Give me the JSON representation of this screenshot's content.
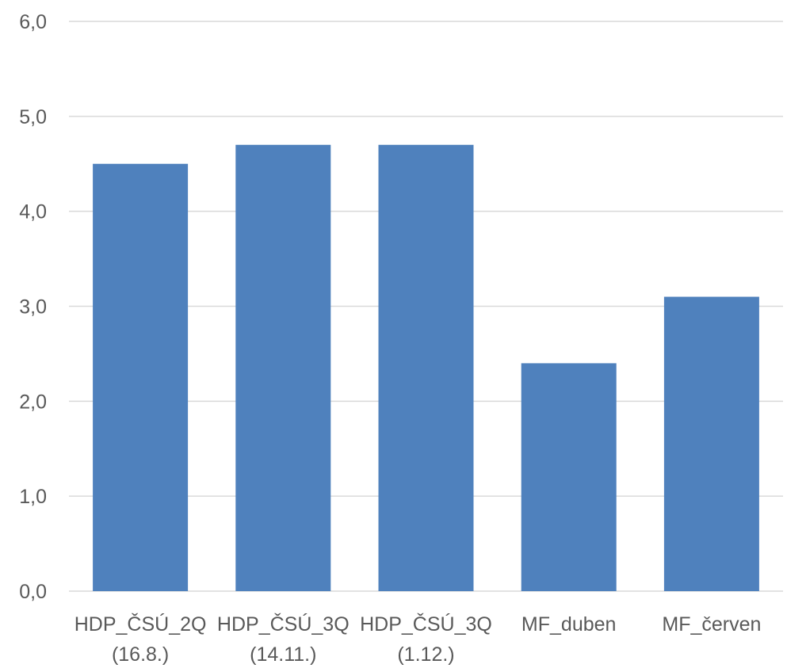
{
  "chart_data": {
    "type": "bar",
    "title": "",
    "xlabel": "",
    "ylabel": "",
    "categories": [
      [
        "HDP_ČSÚ_2Q",
        "(16.8.)"
      ],
      [
        "HDP_ČSÚ_3Q",
        "(14.11.)"
      ],
      [
        "HDP_ČSÚ_3Q",
        "(1.12.)"
      ],
      [
        "MF_duben"
      ],
      [
        "MF_červen"
      ]
    ],
    "values": [
      4.5,
      4.7,
      4.7,
      2.4,
      3.1
    ],
    "ylim": [
      0,
      6
    ],
    "yticks": [
      "0,0",
      "1,0",
      "2,0",
      "3,0",
      "4,0",
      "5,0",
      "6,0"
    ],
    "grid": true,
    "bar_color": "#4f81bd",
    "grid_color": "#d9d9d9",
    "text_color": "#595959"
  }
}
